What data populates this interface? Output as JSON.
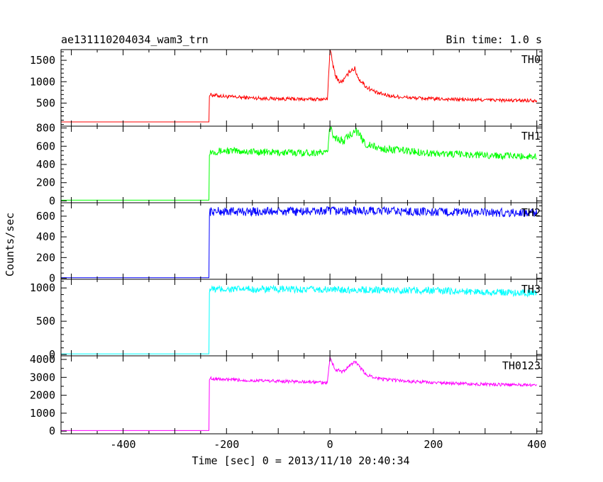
{
  "chart_data": {
    "type": "line",
    "title": "ae131110204034_wam3_trn",
    "bin_label": "Bin time: 1.0 s",
    "xlabel": "Time [sec] 0 = 2013/11/10 20:40:34",
    "ylabel": "Counts/sec",
    "xlim": [
      -520,
      410
    ],
    "x_ticks": [
      -400,
      -200,
      0,
      200,
      400
    ],
    "grid": false,
    "panels": [
      {
        "name": "TH0",
        "color": "#ff0000",
        "ylim": [
          -40,
          1750
        ],
        "y_ticks": [
          500,
          1000,
          1500
        ],
        "y_minor": 100,
        "points": [
          [
            -520,
            60
          ],
          [
            -234,
            60
          ],
          [
            -234,
            700
          ],
          [
            -200,
            650
          ],
          [
            -150,
            620
          ],
          [
            -100,
            600
          ],
          [
            -50,
            590
          ],
          [
            -5,
            590
          ],
          [
            0,
            1750
          ],
          [
            10,
            1150
          ],
          [
            20,
            980
          ],
          [
            30,
            1080
          ],
          [
            40,
            1280
          ],
          [
            48,
            1300
          ],
          [
            55,
            1080
          ],
          [
            70,
            880
          ],
          [
            90,
            740
          ],
          [
            120,
            660
          ],
          [
            160,
            620
          ],
          [
            200,
            600
          ],
          [
            260,
            580
          ],
          [
            320,
            570
          ],
          [
            360,
            560
          ],
          [
            400,
            565
          ]
        ]
      },
      {
        "name": "TH1",
        "color": "#00ff00",
        "ylim": [
          -20,
          820
        ],
        "y_ticks": [
          0,
          200,
          400,
          600,
          800
        ],
        "y_minor": 50,
        "points": [
          [
            -520,
            8
          ],
          [
            -234,
            8
          ],
          [
            -234,
            540
          ],
          [
            -200,
            550
          ],
          [
            -150,
            540
          ],
          [
            -100,
            530
          ],
          [
            -50,
            530
          ],
          [
            -5,
            530
          ],
          [
            0,
            800
          ],
          [
            10,
            700
          ],
          [
            25,
            650
          ],
          [
            40,
            730
          ],
          [
            48,
            790
          ],
          [
            55,
            730
          ],
          [
            70,
            620
          ],
          [
            100,
            570
          ],
          [
            150,
            550
          ],
          [
            200,
            520
          ],
          [
            260,
            510
          ],
          [
            320,
            500
          ],
          [
            360,
            490
          ],
          [
            400,
            490
          ]
        ]
      },
      {
        "name": "TH2",
        "color": "#0000ff",
        "ylim": [
          -10,
          730
        ],
        "y_ticks": [
          0,
          200,
          400,
          600
        ],
        "y_minor": 50,
        "points": [
          [
            -520,
            5
          ],
          [
            -234,
            5
          ],
          [
            -234,
            645
          ],
          [
            -150,
            645
          ],
          [
            -50,
            645
          ],
          [
            0,
            650
          ],
          [
            100,
            650
          ],
          [
            200,
            640
          ],
          [
            300,
            635
          ],
          [
            400,
            630
          ]
        ]
      },
      {
        "name": "TH3",
        "color": "#00ffff",
        "ylim": [
          -20,
          1130
        ],
        "y_ticks": [
          0,
          500,
          1000
        ],
        "y_minor": 100,
        "points": [
          [
            -520,
            10
          ],
          [
            -234,
            10
          ],
          [
            -234,
            980
          ],
          [
            -150,
            980
          ],
          [
            -50,
            975
          ],
          [
            0,
            975
          ],
          [
            100,
            970
          ],
          [
            200,
            960
          ],
          [
            300,
            940
          ],
          [
            400,
            920
          ]
        ]
      },
      {
        "name": "TH0123",
        "color": "#ff00ff",
        "ylim": [
          -150,
          4200
        ],
        "y_ticks": [
          0,
          1000,
          2000,
          3000,
          4000
        ],
        "y_minor": 500,
        "points": [
          [
            -520,
            30
          ],
          [
            -234,
            30
          ],
          [
            -234,
            2950
          ],
          [
            -200,
            2870
          ],
          [
            -150,
            2820
          ],
          [
            -100,
            2790
          ],
          [
            -50,
            2750
          ],
          [
            -5,
            2700
          ],
          [
            0,
            4100
          ],
          [
            10,
            3450
          ],
          [
            25,
            3300
          ],
          [
            40,
            3700
          ],
          [
            48,
            3900
          ],
          [
            55,
            3650
          ],
          [
            70,
            3150
          ],
          [
            100,
            2900
          ],
          [
            150,
            2780
          ],
          [
            200,
            2700
          ],
          [
            260,
            2640
          ],
          [
            320,
            2600
          ],
          [
            360,
            2580
          ],
          [
            400,
            2580
          ]
        ]
      }
    ]
  }
}
